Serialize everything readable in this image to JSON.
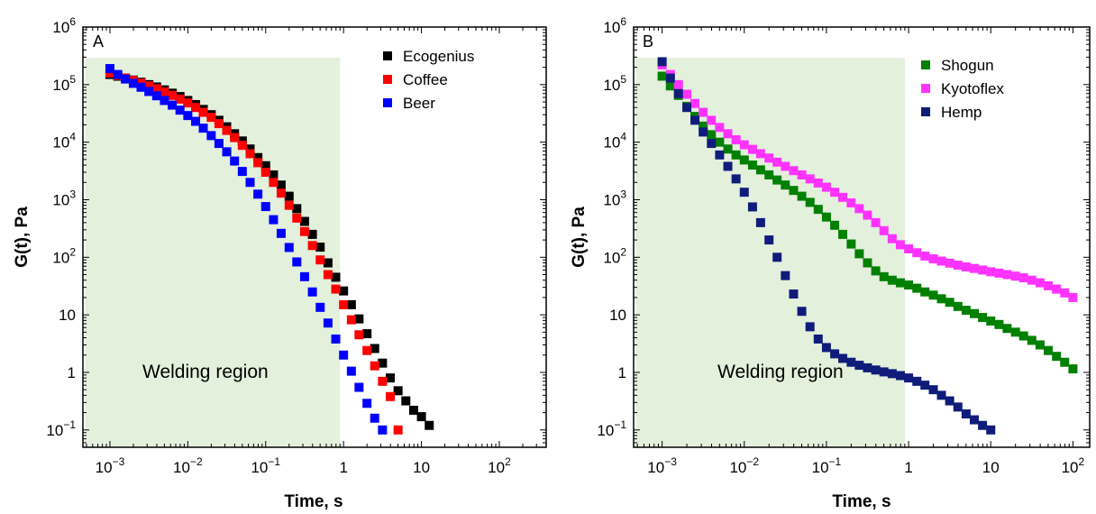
{
  "chart_data": [
    {
      "type": "scatter",
      "panel_label": "A",
      "xlabel": "Time, s",
      "ylabel": "G(t), Pa",
      "x_scale": "log",
      "y_scale": "log",
      "xlim": [
        0.00045,
        400
      ],
      "ylim": [
        0.05,
        1000000
      ],
      "x_ticks": [
        {
          "value": 0.001,
          "base": "10",
          "exp": "−3"
        },
        {
          "value": 0.01,
          "base": "10",
          "exp": "−2"
        },
        {
          "value": 0.1,
          "base": "10",
          "exp": "−1"
        },
        {
          "value": 1,
          "base": "1",
          "exp": ""
        },
        {
          "value": 10,
          "base": "10",
          "exp": ""
        },
        {
          "value": 100,
          "base": "10",
          "exp": "2"
        }
      ],
      "y_ticks": [
        {
          "value": 0.1,
          "base": "10",
          "exp": "−1"
        },
        {
          "value": 1,
          "base": "1",
          "exp": ""
        },
        {
          "value": 10,
          "base": "10",
          "exp": ""
        },
        {
          "value": 100,
          "base": "10",
          "exp": "2"
        },
        {
          "value": 1000,
          "base": "10",
          "exp": "3"
        },
        {
          "value": 10000,
          "base": "10",
          "exp": "4"
        },
        {
          "value": 100000,
          "base": "10",
          "exp": "5"
        },
        {
          "value": 1000000,
          "base": "10",
          "exp": "6"
        }
      ],
      "shaded_region": {
        "label": "Welding region",
        "x_range": [
          0.00048,
          0.9
        ],
        "y_range": [
          0.05,
          290000
        ],
        "color": "#e3f0dc"
      },
      "legend_position": "top-right",
      "series": [
        {
          "name": "Ecogenius",
          "color": "#000000",
          "marker": "square",
          "x": [
            0.001,
            0.00126,
            0.00158,
            0.002,
            0.00251,
            0.00316,
            0.00398,
            0.00501,
            0.00631,
            0.00794,
            0.01,
            0.0126,
            0.0158,
            0.02,
            0.0251,
            0.0316,
            0.0398,
            0.0501,
            0.0631,
            0.0794,
            0.1,
            0.126,
            0.158,
            0.2,
            0.251,
            0.316,
            0.398,
            0.501,
            0.631,
            0.794,
            1,
            1.26,
            1.58,
            2,
            2.51,
            3.16,
            3.98,
            5.01,
            6.31,
            7.94,
            10,
            12.6
          ],
          "y": [
            150000,
            140000,
            130000,
            120000,
            110000,
            100000,
            91000,
            81000,
            71000,
            62000,
            53000,
            45000,
            37000,
            30000,
            24000,
            18500,
            14000,
            10500,
            7600,
            5400,
            3900,
            2700,
            1800,
            1150,
            700,
            420,
            250,
            150,
            80,
            45,
            26,
            15,
            8.5,
            4.7,
            2.6,
            1.45,
            0.8,
            0.48,
            0.32,
            0.22,
            0.17,
            0.12
          ]
        },
        {
          "name": "Coffee",
          "color": "#ff0000",
          "marker": "square",
          "x": [
            0.001,
            0.00126,
            0.00158,
            0.002,
            0.00251,
            0.00316,
            0.00398,
            0.00501,
            0.00631,
            0.00794,
            0.01,
            0.0126,
            0.0158,
            0.02,
            0.0251,
            0.0316,
            0.0398,
            0.0501,
            0.0631,
            0.0794,
            0.1,
            0.126,
            0.158,
            0.2,
            0.251,
            0.316,
            0.398,
            0.501,
            0.631,
            0.794,
            1,
            1.26,
            1.58,
            2,
            2.51,
            3.16,
            3.98,
            5.01
          ],
          "y": [
            160000,
            145000,
            130000,
            118000,
            106000,
            95000,
            85000,
            75000,
            65000,
            56000,
            48000,
            40000,
            33000,
            27000,
            21000,
            16000,
            12000,
            8800,
            6300,
            4400,
            3000,
            2000,
            1300,
            800,
            480,
            280,
            160,
            90,
            50,
            28,
            15,
            8.2,
            4.5,
            2.4,
            1.3,
            0.7,
            0.38,
            0.1
          ]
        },
        {
          "name": "Beer",
          "color": "#0000ff",
          "marker": "square",
          "x": [
            0.001,
            0.00126,
            0.00158,
            0.002,
            0.00251,
            0.00316,
            0.00398,
            0.00501,
            0.00631,
            0.00794,
            0.01,
            0.0126,
            0.0158,
            0.02,
            0.0251,
            0.0316,
            0.0398,
            0.0501,
            0.0631,
            0.0794,
            0.1,
            0.126,
            0.158,
            0.2,
            0.251,
            0.316,
            0.398,
            0.501,
            0.631,
            0.794,
            1,
            1.26,
            1.58,
            2,
            2.51,
            3.16
          ],
          "y": [
            190000,
            150000,
            125000,
            105000,
            90000,
            76000,
            64000,
            53000,
            44000,
            36000,
            29000,
            23000,
            17500,
            13000,
            9500,
            6800,
            4700,
            3100,
            2000,
            1250,
            760,
            450,
            260,
            148,
            83,
            46,
            25,
            13.5,
            7.2,
            3.8,
            2,
            1.05,
            0.55,
            0.29,
            0.16,
            0.1
          ]
        }
      ]
    },
    {
      "type": "scatter",
      "panel_label": "B",
      "xlabel": "Time, s",
      "ylabel": "G(t), Pa",
      "x_scale": "log",
      "y_scale": "log",
      "xlim": [
        0.00045,
        160
      ],
      "ylim": [
        0.05,
        1000000
      ],
      "x_ticks": [
        {
          "value": 0.001,
          "base": "10",
          "exp": "−3"
        },
        {
          "value": 0.01,
          "base": "10",
          "exp": "−2"
        },
        {
          "value": 0.1,
          "base": "10",
          "exp": "−1"
        },
        {
          "value": 1,
          "base": "1",
          "exp": ""
        },
        {
          "value": 10,
          "base": "10",
          "exp": ""
        },
        {
          "value": 100,
          "base": "10",
          "exp": "2"
        }
      ],
      "y_ticks": [
        {
          "value": 0.1,
          "base": "10",
          "exp": "−1"
        },
        {
          "value": 1,
          "base": "1",
          "exp": ""
        },
        {
          "value": 10,
          "base": "10",
          "exp": ""
        },
        {
          "value": 100,
          "base": "10",
          "exp": "2"
        },
        {
          "value": 1000,
          "base": "10",
          "exp": "3"
        },
        {
          "value": 10000,
          "base": "10",
          "exp": "4"
        },
        {
          "value": 100000,
          "base": "10",
          "exp": "5"
        },
        {
          "value": 1000000,
          "base": "10",
          "exp": "6"
        }
      ],
      "shaded_region": {
        "label": "Welding region",
        "x_range": [
          0.00048,
          0.9
        ],
        "y_range": [
          0.05,
          290000
        ],
        "color": "#e3f0dc"
      },
      "legend_position": "top-right",
      "series": [
        {
          "name": "Shogun",
          "color": "#008000",
          "marker": "square",
          "x": [
            0.001,
            0.00126,
            0.00158,
            0.002,
            0.00251,
            0.00316,
            0.00398,
            0.00501,
            0.00631,
            0.00794,
            0.01,
            0.0126,
            0.0158,
            0.02,
            0.0251,
            0.0316,
            0.0398,
            0.0501,
            0.0631,
            0.0794,
            0.1,
            0.126,
            0.158,
            0.2,
            0.251,
            0.316,
            0.398,
            0.501,
            0.631,
            0.794,
            1,
            1.26,
            1.58,
            2,
            2.51,
            3.16,
            3.98,
            5.01,
            6.31,
            7.94,
            10,
            12.6,
            15.8,
            20,
            25.1,
            31.6,
            39.8,
            50.1,
            63.1,
            79.4,
            100
          ],
          "y": [
            140000,
            95000,
            65000,
            42000,
            28000,
            19000,
            13500,
            10000,
            7600,
            6000,
            4900,
            4000,
            3300,
            2700,
            2200,
            1800,
            1450,
            1150,
            900,
            680,
            500,
            360,
            250,
            170,
            115,
            80,
            58,
            46,
            40,
            36,
            33,
            29,
            25,
            22,
            19,
            16.5,
            14,
            12,
            10.5,
            9,
            7.8,
            6.8,
            5.8,
            5,
            4.3,
            3.6,
            3,
            2.4,
            1.9,
            1.5,
            1.15
          ]
        },
        {
          "name": "Kyotoflex",
          "color": "#ff33ff",
          "marker": "square",
          "x": [
            0.001,
            0.00126,
            0.00158,
            0.002,
            0.00251,
            0.00316,
            0.00398,
            0.00501,
            0.00631,
            0.00794,
            0.01,
            0.0126,
            0.0158,
            0.02,
            0.0251,
            0.0316,
            0.0398,
            0.0501,
            0.0631,
            0.0794,
            0.1,
            0.126,
            0.158,
            0.2,
            0.251,
            0.316,
            0.398,
            0.501,
            0.631,
            0.794,
            1,
            1.26,
            1.58,
            2,
            2.51,
            3.16,
            3.98,
            5.01,
            6.31,
            7.94,
            10,
            12.6,
            15.8,
            20,
            25.1,
            31.6,
            39.8,
            50.1,
            63.1,
            79.4,
            100
          ],
          "y": [
            220000,
            150000,
            100000,
            68000,
            47000,
            33000,
            24000,
            18000,
            14000,
            11000,
            9000,
            7500,
            6300,
            5300,
            4500,
            3800,
            3200,
            2700,
            2300,
            1950,
            1650,
            1350,
            1100,
            880,
            700,
            540,
            400,
            290,
            210,
            165,
            140,
            120,
            105,
            94,
            86,
            79,
            73,
            68,
            64,
            60,
            56,
            53,
            50,
            47,
            44,
            40,
            36,
            32,
            28,
            24,
            20
          ]
        },
        {
          "name": "Hemp",
          "color": "#101c7a",
          "marker": "square",
          "x": [
            0.001,
            0.00126,
            0.00158,
            0.002,
            0.00251,
            0.00316,
            0.00398,
            0.00501,
            0.00631,
            0.00794,
            0.01,
            0.0126,
            0.0158,
            0.02,
            0.0251,
            0.0316,
            0.0398,
            0.0501,
            0.0631,
            0.0794,
            0.1,
            0.126,
            0.158,
            0.2,
            0.251,
            0.316,
            0.398,
            0.501,
            0.631,
            0.794,
            1,
            1.26,
            1.58,
            2,
            2.51,
            3.16,
            3.98,
            5.01,
            6.31,
            7.94,
            10
          ],
          "y": [
            250000,
            130000,
            70000,
            40000,
            24000,
            15000,
            9500,
            6000,
            3800,
            2300,
            1350,
            750,
            400,
            200,
            100,
            48,
            23,
            11.5,
            6.2,
            3.8,
            2.7,
            2.1,
            1.75,
            1.5,
            1.33,
            1.2,
            1.1,
            1.02,
            0.95,
            0.88,
            0.8,
            0.7,
            0.6,
            0.5,
            0.4,
            0.32,
            0.25,
            0.19,
            0.15,
            0.12,
            0.1
          ]
        }
      ]
    }
  ]
}
